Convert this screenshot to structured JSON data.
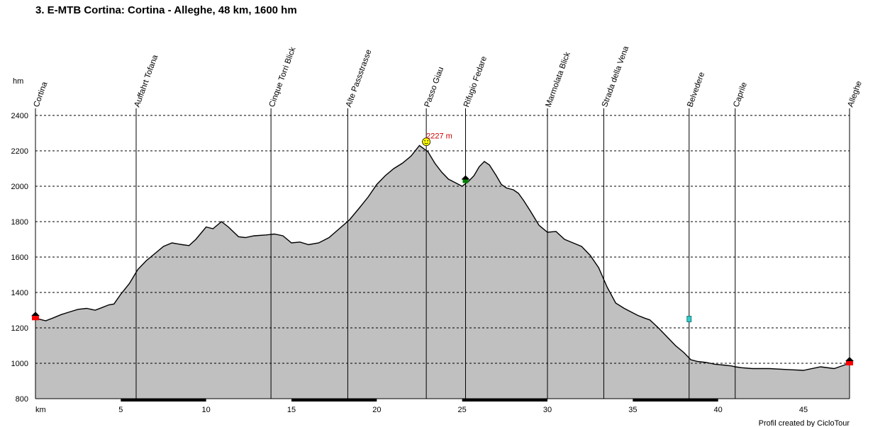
{
  "chart_data": {
    "type": "area",
    "title": "3. E-MTB Cortina: Cortina - Alleghe, 48 km, 1600 hm",
    "ylabel": "hm",
    "xlabel": "km",
    "xlim": [
      0,
      47.7
    ],
    "ylim": [
      800,
      2400
    ],
    "x_ticks": [
      "5",
      "10",
      "15",
      "20",
      "25",
      "30",
      "35",
      "40",
      "45"
    ],
    "y_ticks": [
      "800",
      "1000",
      "1200",
      "1400",
      "1600",
      "1800",
      "2000",
      "2200",
      "2400"
    ],
    "grid": "horizontal dashed",
    "fill_color": "#c0c0c0",
    "series": [
      {
        "x": [
          0,
          0.6,
          1.0,
          1.5,
          2.0,
          2.5,
          3.0,
          3.5,
          3.9,
          4.3,
          4.6,
          5.0,
          5.5,
          6.0,
          6.5,
          7.0,
          7.5,
          8.0,
          8.6,
          9.0,
          9.4,
          10.0,
          10.4,
          10.9,
          11.3,
          11.9,
          12.3,
          12.8,
          13.5,
          14.0,
          14.5,
          15.0,
          15.5,
          16.0,
          16.6,
          17.2,
          17.8,
          18.4,
          19.0,
          19.5,
          20.0,
          20.5,
          21.0,
          21.5,
          22.0,
          22.5,
          23.0,
          23.4,
          23.8,
          24.2,
          24.6,
          25.0,
          25.4,
          25.7,
          26.0,
          26.3,
          26.6,
          27.0,
          27.3,
          27.6,
          28.0,
          28.3,
          28.6,
          29.0,
          29.5,
          30.0,
          30.5,
          31.0,
          31.5,
          32.0,
          32.5,
          33.0,
          33.5,
          34.0,
          34.5,
          34.9,
          35.3,
          35.7,
          36.0,
          36.5,
          37.0,
          37.5,
          38.0,
          38.4,
          38.8,
          39.3,
          39.8,
          40.3,
          40.8,
          41.0,
          41.4,
          42.0,
          43.0,
          44.0,
          45.0,
          46.0,
          46.8,
          47.1,
          47.4,
          47.7
        ],
        "y": [
          1255,
          1240,
          1255,
          1275,
          1290,
          1305,
          1310,
          1300,
          1315,
          1330,
          1335,
          1390,
          1450,
          1530,
          1580,
          1620,
          1660,
          1680,
          1670,
          1665,
          1700,
          1770,
          1760,
          1800,
          1770,
          1715,
          1710,
          1720,
          1725,
          1730,
          1720,
          1680,
          1685,
          1670,
          1680,
          1710,
          1760,
          1810,
          1880,
          1940,
          2010,
          2060,
          2100,
          2130,
          2170,
          2230,
          2195,
          2130,
          2080,
          2040,
          2020,
          2000,
          2030,
          2060,
          2110,
          2140,
          2120,
          2060,
          2010,
          1990,
          1980,
          1960,
          1920,
          1860,
          1780,
          1740,
          1745,
          1700,
          1680,
          1660,
          1610,
          1540,
          1430,
          1340,
          1310,
          1290,
          1270,
          1255,
          1245,
          1200,
          1150,
          1100,
          1060,
          1020,
          1010,
          1005,
          995,
          990,
          985,
          980,
          975,
          970,
          970,
          965,
          960,
          980,
          970,
          980,
          990,
          1000
        ]
      }
    ],
    "peak_label": "2227 m",
    "peak_point": [
      22.9,
      2227
    ],
    "waypoints": [
      {
        "name": "Cortina",
        "km": 0
      },
      {
        "name": "Auffahrt Tofana",
        "km": 5.9
      },
      {
        "name": "Cinque Torri Blick",
        "km": 13.8
      },
      {
        "name": "Alte Passstrasse",
        "km": 18.3
      },
      {
        "name": "Passo Giau",
        "km": 22.9
      },
      {
        "name": "Rifugio Fedare",
        "km": 25.2
      },
      {
        "name": "Marmolata Blick",
        "km": 30.0
      },
      {
        "name": "Strada della Vena",
        "km": 33.3
      },
      {
        "name": "Belvedere",
        "km": 38.3
      },
      {
        "name": "Caprile",
        "km": 41.0
      },
      {
        "name": "Alleghe",
        "km": 47.7
      }
    ],
    "credit": "Profil created by CicloTour"
  }
}
